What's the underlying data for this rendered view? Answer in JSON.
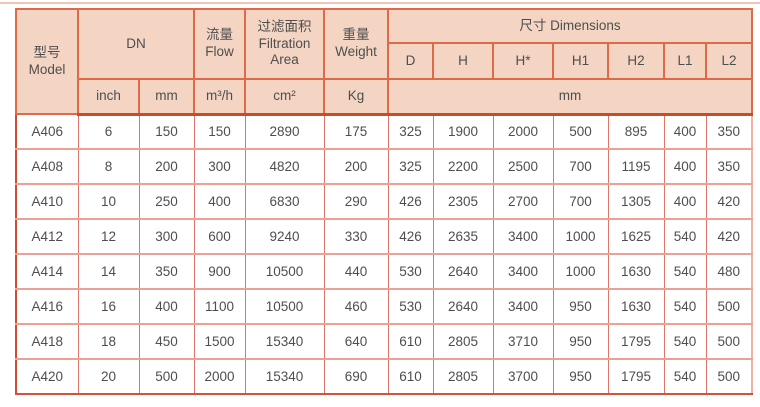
{
  "colors": {
    "header_bg": "#f4d5c4",
    "header_border": "#df6a49",
    "heavy_divider": "#c64d28",
    "body_border_vertical": "#dd7568",
    "body_border_horizontal": "#eda196",
    "outer_border_strong": "#d14a31",
    "text": "#4e4e4e",
    "top_line": "#f3c3b5"
  },
  "table": {
    "header": {
      "model": "型号\nModel",
      "dn": "DN",
      "flow": "流量\nFlow",
      "filtration_area": "过滤面积\nFiltration\nArea",
      "weight": "重量\nWeight",
      "dimensions": "尺寸 Dimensions",
      "dim_columns": [
        "D",
        "H",
        "H*",
        "H1",
        "H2",
        "L1",
        "L2"
      ],
      "unit_inch": "inch",
      "unit_mm": "mm",
      "unit_flow": "m³/h",
      "unit_area": "cm²",
      "unit_weight": "Kg",
      "unit_dims": "mm"
    },
    "rows": [
      {
        "model": "A406",
        "values": [
          "6",
          "150",
          "150",
          "2890",
          "175",
          "325",
          "1900",
          "2000",
          "500",
          "895",
          "400",
          "350"
        ]
      },
      {
        "model": "A408",
        "values": [
          "8",
          "200",
          "300",
          "4820",
          "200",
          "325",
          "2200",
          "2500",
          "700",
          "1195",
          "400",
          "350"
        ]
      },
      {
        "model": "A410",
        "values": [
          "10",
          "250",
          "400",
          "6830",
          "290",
          "426",
          "2305",
          "2700",
          "700",
          "1305",
          "400",
          "420"
        ]
      },
      {
        "model": "A412",
        "values": [
          "12",
          "300",
          "600",
          "9240",
          "330",
          "426",
          "2635",
          "3400",
          "1000",
          "1625",
          "540",
          "420"
        ]
      },
      {
        "model": "A414",
        "values": [
          "14",
          "350",
          "900",
          "10500",
          "440",
          "530",
          "2640",
          "3400",
          "1000",
          "1630",
          "540",
          "480"
        ]
      },
      {
        "model": "A416",
        "values": [
          "16",
          "400",
          "1100",
          "10500",
          "460",
          "530",
          "2640",
          "3400",
          "950",
          "1630",
          "540",
          "500"
        ]
      },
      {
        "model": "A418",
        "values": [
          "18",
          "450",
          "1500",
          "15340",
          "640",
          "610",
          "2805",
          "3710",
          "950",
          "1795",
          "540",
          "500"
        ]
      },
      {
        "model": "A420",
        "values": [
          "20",
          "500",
          "2000",
          "15340",
          "690",
          "610",
          "2805",
          "3700",
          "950",
          "1795",
          "540",
          "500"
        ]
      }
    ]
  }
}
